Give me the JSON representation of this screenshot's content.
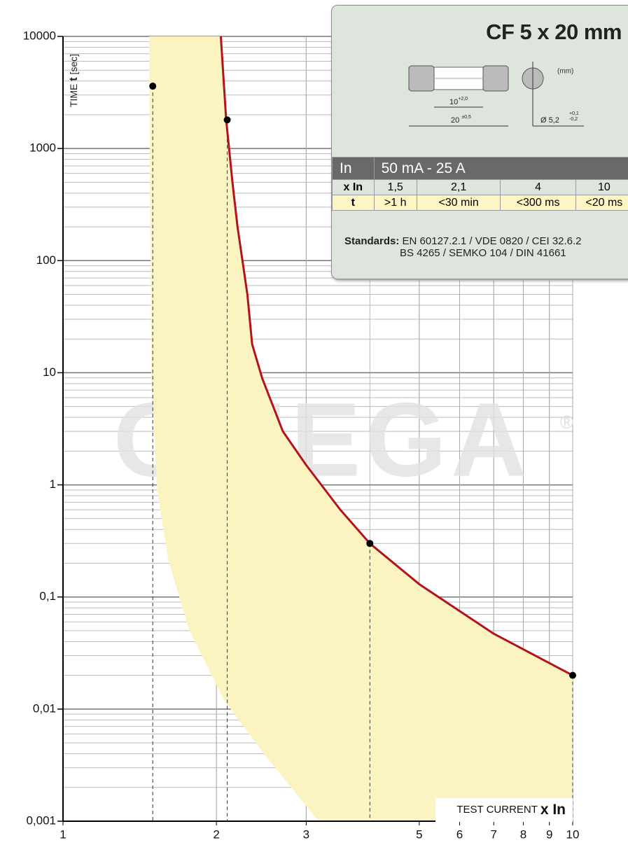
{
  "chart_data": {
    "type": "line",
    "y_label": [
      "TIME",
      "t",
      "[sec]"
    ],
    "x_label": [
      "TEST CURRENT",
      "x In"
    ],
    "watermark": "OMEGA",
    "watermark_mark": "®",
    "log_x": true,
    "log_y": true,
    "grid": true,
    "xlim": [
      1,
      10
    ],
    "xticks": [
      1,
      2,
      3,
      5,
      6,
      7,
      8,
      9,
      10
    ],
    "ylim": [
      0.001,
      10000
    ],
    "yticks": [
      {
        "value": 0.001,
        "label": "0,001"
      },
      {
        "value": 0.01,
        "label": "0,01"
      },
      {
        "value": 0.1,
        "label": "0,1"
      },
      1,
      10,
      100,
      1000,
      10000
    ],
    "series": [
      {
        "color": "#b3121f",
        "x": [
          2.04,
          2.09,
          2.15,
          2.2,
          2.3,
          2.35,
          2.46,
          2.7,
          3,
          3.5,
          4,
          5,
          7,
          10
        ],
        "values": [
          10000,
          1800,
          500,
          200,
          50,
          18,
          8.9,
          3,
          1.5,
          0.6,
          0.3,
          0.13,
          0.047,
          0.02
        ]
      }
    ],
    "points": {
      "color": "#000000",
      "x": [
        1.5,
        2.1,
        4,
        10
      ],
      "values": [
        3600,
        1800,
        0.3,
        0.02
      ]
    },
    "zone": {
      "color": "#fbf4c0",
      "x": [
        1.475,
        1.49,
        1.53,
        1.61,
        1.77,
        2.07,
        2.5,
        3.17,
        10
      ],
      "values": [
        10000,
        10,
        0.9,
        0.21,
        0.05,
        0.012,
        0.0038,
        0.001,
        0.001
      ]
    }
  },
  "info_panel": {
    "title": "CF 5 x 20 mm",
    "unit": "(mm)",
    "dim_inner": "10",
    "dim_inner_tol": "+2,0",
    "dim_length": "20",
    "dim_length_tol": "±0,5",
    "dia": "Ø 5,2",
    "dia_tol_plus": "+0,1",
    "dia_tol_minus": "-0,2",
    "rating_label": "In",
    "rating": "50 mA - 25 A",
    "rows": [
      [
        "x In",
        "1,5",
        "2,1",
        "4",
        "10"
      ],
      [
        "t",
        ">1 h",
        "<30 min",
        "<300 ms",
        "<20 ms"
      ]
    ],
    "standards_label": "Standards:",
    "standards": [
      "EN 60127.2.1 / VDE 0820 / CEI 32.6.2",
      "BS 4265 / SEMKO 104 / DIN 41661"
    ]
  }
}
